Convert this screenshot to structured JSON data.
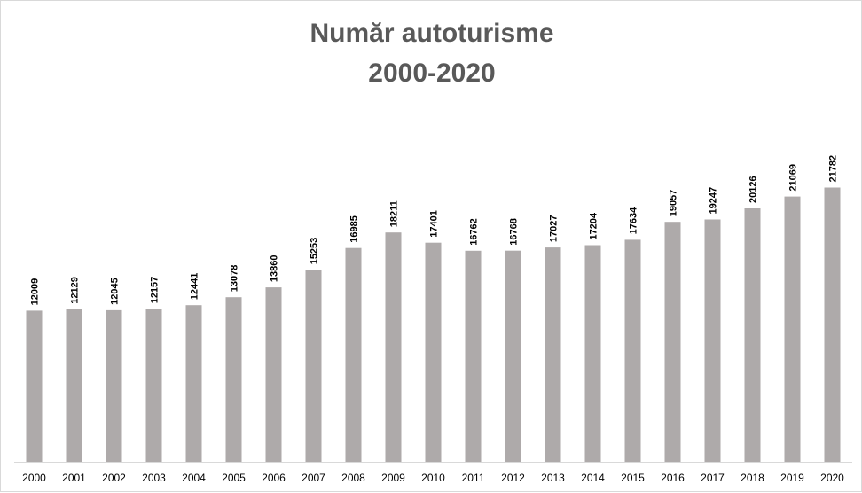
{
  "chart_data": {
    "type": "bar",
    "title": "Număr autoturisme",
    "subtitle": "2000-2020",
    "categories": [
      "2000",
      "2001",
      "2002",
      "2003",
      "2004",
      "2005",
      "2006",
      "2007",
      "2008",
      "2009",
      "2010",
      "2011",
      "2012",
      "2013",
      "2014",
      "2015",
      "2016",
      "2017",
      "2018",
      "2019",
      "2020"
    ],
    "values": [
      12009,
      12129,
      12045,
      12157,
      12441,
      13078,
      13860,
      15253,
      16985,
      18211,
      17401,
      16762,
      16768,
      17027,
      17204,
      17634,
      19057,
      19247,
      20126,
      21069,
      21782
    ],
    "labels": [
      "12009",
      "12129",
      "12045",
      "12157",
      "12441",
      "13078",
      "13860",
      "15253",
      "16985",
      "18211",
      "17401",
      "16762",
      "16768",
      "17027",
      "17204",
      "17634",
      "19057",
      "19247",
      "20126",
      "21069",
      "21782"
    ],
    "ylim": [
      0,
      26300
    ],
    "grid": false,
    "bar_color": "#aeaaaa",
    "axis_color": "#d9d9d9",
    "title_color": "#595959"
  }
}
